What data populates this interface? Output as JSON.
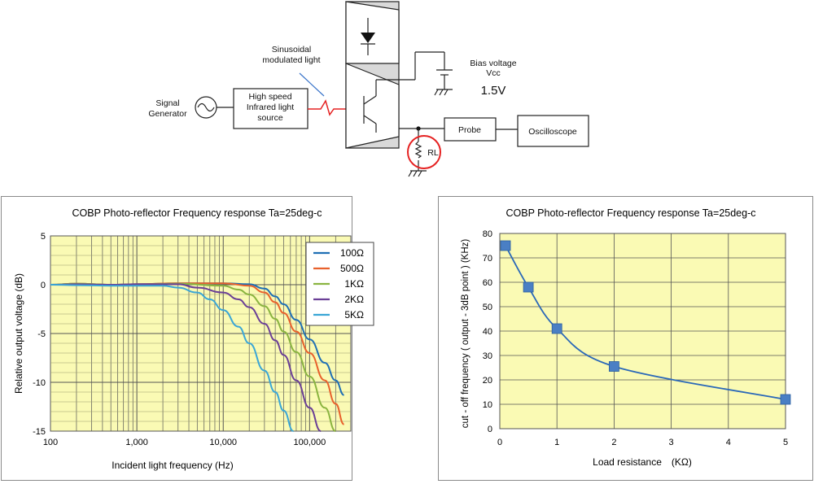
{
  "colors": {
    "plot_bg": "#fafab4",
    "grid": "#555555",
    "c100": "#1f6fb4",
    "c500": "#e8612c",
    "c1k": "#8ab440",
    "c2k": "#6a3f96",
    "c5k": "#3aa6d6",
    "right_line": "#2a68b8",
    "marker": "#4a7fc4",
    "circuit": "#222222",
    "opto_fill": "#d9d9d9",
    "signal_red": "#e52222",
    "rl_circle": "#e52222"
  },
  "circuit": {
    "signal_generator": "Signal\nGenerator",
    "light_source": "High speed\nInfrared light\nsource",
    "modulated_light": "Sinusoidal\nmodulated light",
    "bias_label": "Bias voltage\nVcc",
    "bias_value": "1.5V",
    "probe": "Probe",
    "oscilloscope": "Oscilloscope",
    "rl": "RL",
    "icons": [
      "ac-source-icon",
      "led-diode-icon",
      "phototransistor-icon",
      "battery-icon",
      "ground-icon",
      "resistor-icon"
    ]
  },
  "chart_data": [
    {
      "type": "line",
      "title": "COBP Photo-reflector Frequency response Ta=25deg-c",
      "xlabel": "Incident light frequency (Hz)",
      "ylabel": "Relative output voltage (dB)",
      "xscale": "log",
      "xlim": [
        100,
        300000
      ],
      "ylim": [
        -15,
        5
      ],
      "x_ticks": [
        100,
        1000,
        10000,
        100000
      ],
      "x_tick_labels": [
        "100",
        "1,000",
        "10,000",
        "100,000"
      ],
      "y_ticks": [
        5,
        0,
        -5,
        -10,
        -15
      ],
      "y_tick_labels": [
        "5",
        "0",
        "-5",
        "-10",
        "-15"
      ],
      "grid": true,
      "legend": "top-right",
      "series": [
        {
          "name": "100Ω",
          "color_key": "c100",
          "x": [
            100,
            200,
            500,
            1000,
            3000,
            10000,
            20000,
            30000,
            40000,
            50000,
            70000,
            100000,
            150000,
            200000,
            250000
          ],
          "y": [
            0,
            0.1,
            0,
            0.05,
            0.15,
            0.15,
            0.05,
            -0.4,
            -1.2,
            -2.0,
            -3.6,
            -5.6,
            -8.0,
            -9.8,
            -11.3
          ]
        },
        {
          "name": "500Ω",
          "color_key": "c500",
          "x": [
            100,
            200,
            500,
            1000,
            3000,
            10000,
            20000,
            30000,
            40000,
            50000,
            70000,
            100000,
            150000,
            200000,
            250000
          ],
          "y": [
            0,
            0.1,
            0,
            0.05,
            0.15,
            0.15,
            -0.1,
            -0.8,
            -1.8,
            -2.9,
            -4.8,
            -7.0,
            -9.8,
            -12.2,
            -14.3
          ]
        },
        {
          "name": "1KΩ",
          "color_key": "c1k",
          "x": [
            100,
            200,
            500,
            1000,
            3000,
            10000,
            15000,
            20000,
            30000,
            40000,
            50000,
            70000,
            100000,
            150000,
            200000
          ],
          "y": [
            0,
            0.1,
            0,
            0.05,
            0.1,
            -0.1,
            -0.5,
            -1.0,
            -2.2,
            -3.5,
            -4.8,
            -6.9,
            -9.4,
            -12.6,
            -15
          ]
        },
        {
          "name": "2KΩ",
          "color_key": "c2k",
          "x": [
            100,
            200,
            500,
            1000,
            3000,
            5000,
            10000,
            15000,
            20000,
            30000,
            40000,
            50000,
            70000,
            100000,
            135000
          ],
          "y": [
            0,
            0.05,
            0,
            0.05,
            0.05,
            -0.3,
            -0.8,
            -1.5,
            -2.3,
            -4.0,
            -5.7,
            -7.2,
            -9.8,
            -12.6,
            -15
          ]
        },
        {
          "name": "5KΩ",
          "color_key": "c5k",
          "x": [
            100,
            200,
            500,
            1000,
            2000,
            3000,
            5000,
            7000,
            10000,
            15000,
            20000,
            30000,
            40000,
            50000,
            65000
          ],
          "y": [
            0,
            -0.05,
            -0.1,
            -0.1,
            -0.1,
            -0.3,
            -0.8,
            -1.5,
            -2.6,
            -4.3,
            -6.0,
            -8.8,
            -11.0,
            -12.9,
            -15
          ]
        }
      ]
    },
    {
      "type": "line",
      "title": "COBP Photo-reflector Frequency response Ta=25deg-c",
      "xlabel": "Load resistance　(KΩ)",
      "ylabel": "cut - off frequency ( output - 3dB point ) (KHz)",
      "xlim": [
        0,
        5
      ],
      "ylim": [
        0,
        80
      ],
      "x_ticks": [
        0,
        1,
        2,
        3,
        4,
        5
      ],
      "y_ticks": [
        0,
        10,
        20,
        30,
        40,
        50,
        60,
        70,
        80
      ],
      "grid": true,
      "series": [
        {
          "name": "",
          "x": [
            0.1,
            0.5,
            1,
            2,
            5
          ],
          "y": [
            75,
            58,
            41,
            25.5,
            12
          ]
        }
      ]
    }
  ]
}
